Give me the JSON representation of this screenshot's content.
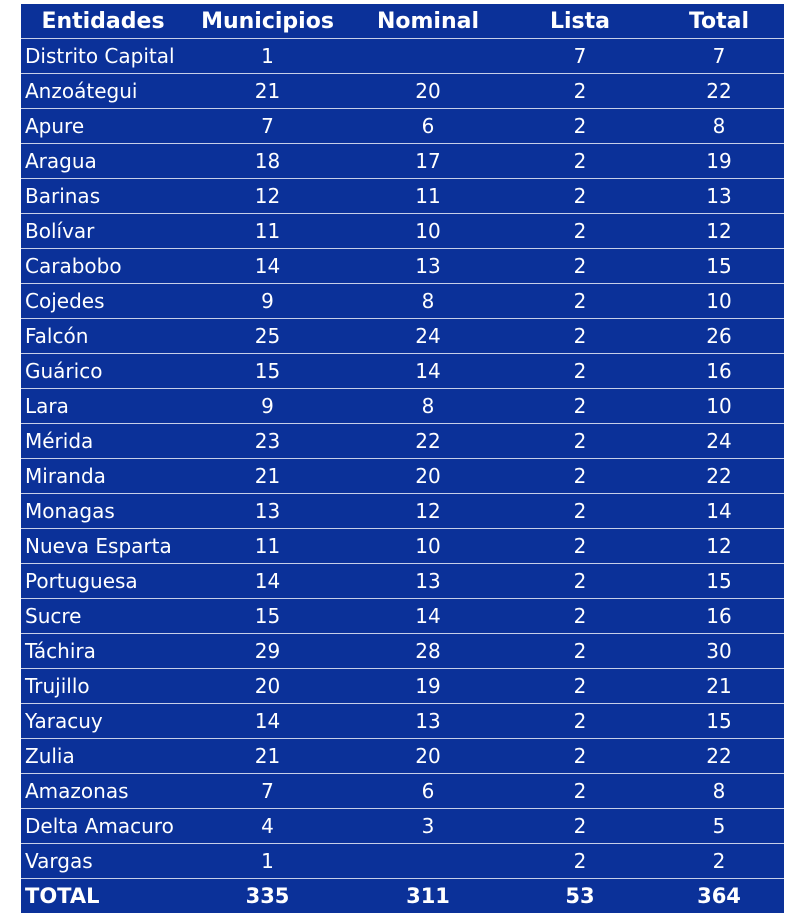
{
  "table": {
    "headers": [
      "Entidades",
      "Municipios",
      "Nominal",
      "Lista",
      "Total"
    ],
    "rows": [
      [
        "Distrito Capital",
        "1",
        "",
        "7",
        "7"
      ],
      [
        "Anzoátegui",
        "21",
        "20",
        "2",
        "22"
      ],
      [
        "Apure",
        "7",
        "6",
        "2",
        "8"
      ],
      [
        "Aragua",
        "18",
        "17",
        "2",
        "19"
      ],
      [
        "Barinas",
        "12",
        "11",
        "2",
        "13"
      ],
      [
        "Bolívar",
        "11",
        "10",
        "2",
        "12"
      ],
      [
        "Carabobo",
        "14",
        "13",
        "2",
        "15"
      ],
      [
        "Cojedes",
        "9",
        "8",
        "2",
        "10"
      ],
      [
        "Falcón",
        "25",
        "24",
        "2",
        "26"
      ],
      [
        "Guárico",
        "15",
        "14",
        "2",
        "16"
      ],
      [
        "Lara",
        "9",
        "8",
        "2",
        "10"
      ],
      [
        "Mérida",
        "23",
        "22",
        "2",
        "24"
      ],
      [
        "Miranda",
        "21",
        "20",
        "2",
        "22"
      ],
      [
        "Monagas",
        "13",
        "12",
        "2",
        "14"
      ],
      [
        "Nueva Esparta",
        "11",
        "10",
        "2",
        "12"
      ],
      [
        "Portuguesa",
        "14",
        "13",
        "2",
        "15"
      ],
      [
        "Sucre",
        "15",
        "14",
        "2",
        "16"
      ],
      [
        "Táchira",
        "29",
        "28",
        "2",
        "30"
      ],
      [
        "Trujillo",
        "20",
        "19",
        "2",
        "21"
      ],
      [
        "Yaracuy",
        "14",
        "13",
        "2",
        "15"
      ],
      [
        "Zulia",
        "21",
        "20",
        "2",
        "22"
      ],
      [
        "Amazonas",
        "7",
        "6",
        "2",
        "8"
      ],
      [
        "Delta Amacuro",
        "4",
        "3",
        "2",
        "5"
      ],
      [
        "Vargas",
        "1",
        "",
        "2",
        "2"
      ]
    ],
    "total": [
      "TOTAL",
      "335",
      "311",
      "53",
      "364"
    ]
  },
  "colors": {
    "cell_background": "#0b3199",
    "text": "#ffffff",
    "row_divider": "#c7cfe8"
  }
}
